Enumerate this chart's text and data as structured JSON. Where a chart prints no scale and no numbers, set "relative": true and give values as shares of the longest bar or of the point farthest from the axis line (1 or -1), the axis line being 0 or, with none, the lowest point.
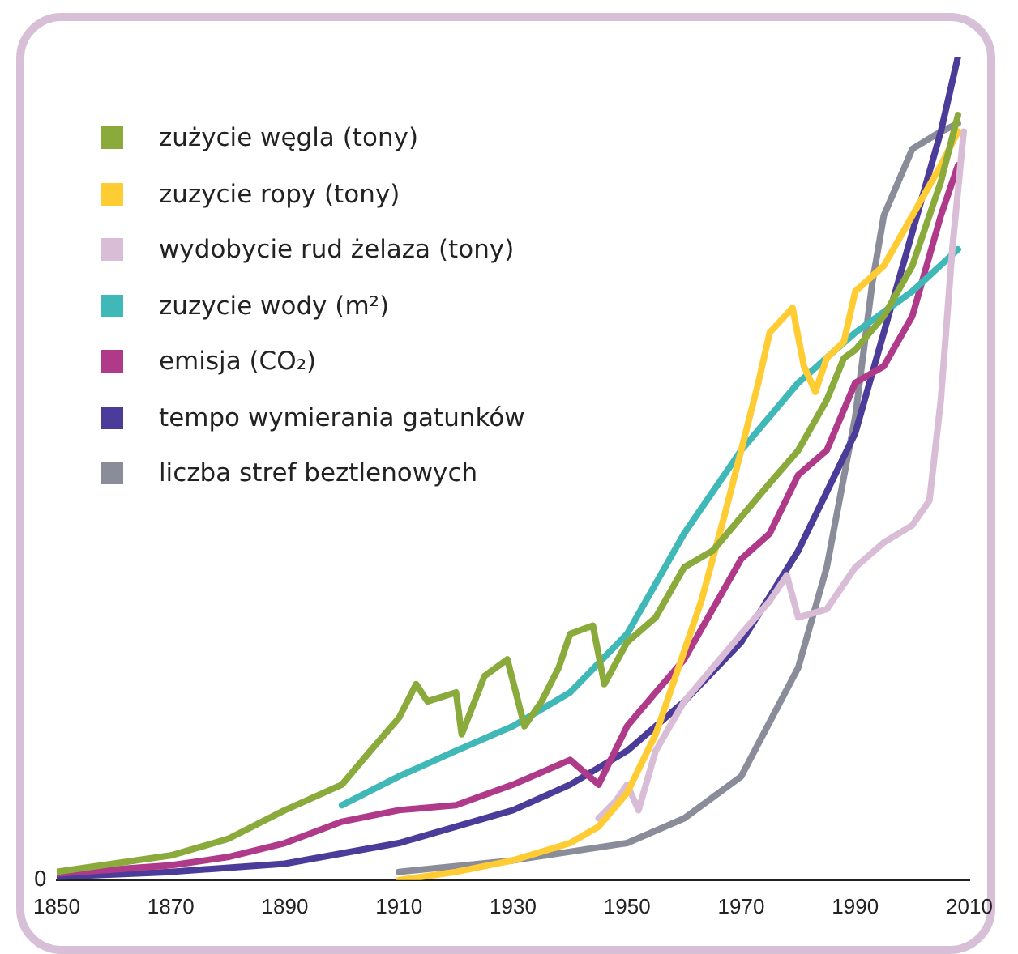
{
  "chart_data": {
    "type": "line",
    "relative": true,
    "xlim": [
      1850,
      2010
    ],
    "xticks": [
      1850,
      1870,
      1890,
      1910,
      1930,
      1950,
      1970,
      1990,
      2010
    ],
    "legend": "top left",
    "grid": false,
    "marker": "none",
    "line_style": "solid",
    "annotations": [
      "0"
    ],
    "series": [
      {
        "name": "zużycie węgla (tony)",
        "color": "#8aab3c",
        "x": [
          1850,
          1870,
          1880,
          1890,
          1900,
          1905,
          1910,
          1913,
          1915,
          1920,
          1921,
          1925,
          1929,
          1932,
          1935,
          1938,
          1940,
          1944,
          1946,
          1950,
          1955,
          1960,
          1965,
          1970,
          1975,
          1980,
          1985,
          1988,
          1990,
          1995,
          2000,
          2005,
          2008
        ],
        "values": [
          0.01,
          0.03,
          0.05,
          0.085,
          0.116,
          0.157,
          0.197,
          0.238,
          0.217,
          0.228,
          0.177,
          0.248,
          0.268,
          0.187,
          0.217,
          0.258,
          0.299,
          0.309,
          0.238,
          0.289,
          0.319,
          0.38,
          0.4,
          0.441,
          0.482,
          0.522,
          0.583,
          0.634,
          0.644,
          0.685,
          0.746,
          0.848,
          0.929
        ]
      },
      {
        "name": "zuzycie ropy (tony)",
        "color": "#ffcc33",
        "x": [
          1910,
          1920,
          1930,
          1940,
          1945,
          1950,
          1955,
          1960,
          1963,
          1967,
          1970,
          1973,
          1975,
          1979,
          1981,
          1983,
          1985,
          1988,
          1990,
          1995,
          2000,
          2005,
          2008
        ],
        "values": [
          0,
          0.01,
          0.024,
          0.045,
          0.065,
          0.106,
          0.177,
          0.278,
          0.339,
          0.441,
          0.522,
          0.604,
          0.665,
          0.695,
          0.624,
          0.593,
          0.634,
          0.654,
          0.715,
          0.746,
          0.807,
          0.868,
          0.909
        ]
      },
      {
        "name": "wydobycie rud żelaza (tony)",
        "color": "#d9bcd6",
        "x": [
          1945,
          1948,
          1950,
          1952,
          1955,
          1960,
          1965,
          1970,
          1975,
          1978,
          1980,
          1985,
          1990,
          1995,
          2000,
          2003,
          2005,
          2007,
          2009
        ],
        "values": [
          0.075,
          0.096,
          0.116,
          0.085,
          0.157,
          0.217,
          0.258,
          0.299,
          0.339,
          0.37,
          0.319,
          0.329,
          0.38,
          0.41,
          0.431,
          0.461,
          0.583,
          0.766,
          0.909
        ]
      },
      {
        "name": "zuzycie wody (m²)",
        "color": "#40b8b8",
        "x": [
          1900,
          1910,
          1920,
          1930,
          1940,
          1950,
          1960,
          1970,
          1980,
          1990,
          2000,
          2008
        ],
        "values": [
          0.091,
          0.126,
          0.157,
          0.187,
          0.228,
          0.299,
          0.421,
          0.522,
          0.604,
          0.665,
          0.715,
          0.766
        ]
      },
      {
        "name": "emisja (CO₂)",
        "color": "#b03a8a",
        "x": [
          1850,
          1870,
          1880,
          1890,
          1900,
          1910,
          1920,
          1930,
          1940,
          1945,
          1950,
          1955,
          1960,
          1965,
          1970,
          1975,
          1980,
          1985,
          1990,
          1995,
          2000,
          2005,
          2008
        ],
        "values": [
          0.008,
          0.018,
          0.028,
          0.045,
          0.071,
          0.085,
          0.091,
          0.116,
          0.146,
          0.116,
          0.187,
          0.228,
          0.268,
          0.329,
          0.39,
          0.421,
          0.492,
          0.522,
          0.604,
          0.624,
          0.685,
          0.807,
          0.868
        ]
      },
      {
        "name": "tempo wymierania gatunków",
        "color": "#4b3c9a",
        "x": [
          1850,
          1870,
          1890,
          1910,
          1930,
          1940,
          1950,
          1960,
          1970,
          1980,
          1990,
          1995,
          2000,
          2005,
          2008
        ],
        "values": [
          0.004,
          0.01,
          0.02,
          0.045,
          0.085,
          0.116,
          0.157,
          0.217,
          0.289,
          0.4,
          0.543,
          0.665,
          0.787,
          0.909,
          1
        ]
      },
      {
        "name": "liczba stref beztlenowych",
        "color": "#8a8c99",
        "x": [
          1910,
          1930,
          1950,
          1960,
          1970,
          1980,
          1985,
          1990,
          1993,
          1995,
          2000,
          2005,
          2008
        ],
        "values": [
          0.01,
          0.024,
          0.045,
          0.075,
          0.126,
          0.258,
          0.38,
          0.563,
          0.726,
          0.807,
          0.888,
          0.909,
          0.919
        ]
      }
    ]
  }
}
